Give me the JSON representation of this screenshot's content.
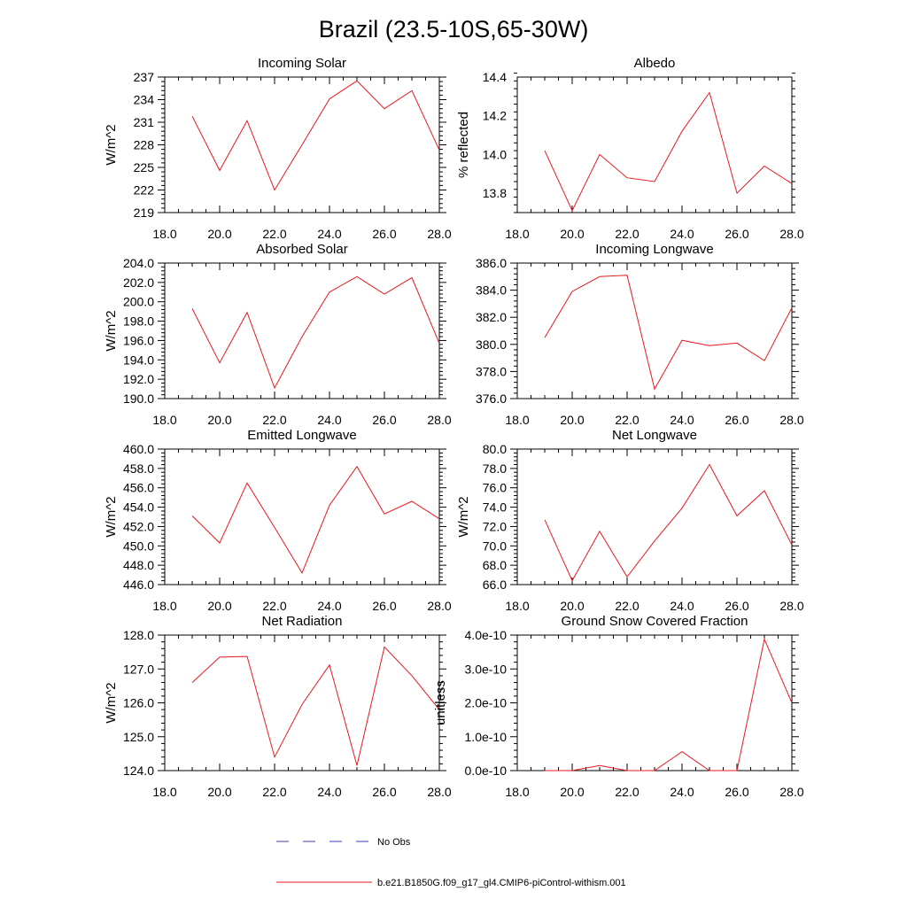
{
  "figure": {
    "title": "Brazil (23.5-10S,65-30W)"
  },
  "legend": {
    "entries": [
      {
        "label": "No Obs",
        "color": "#3b3bb8",
        "style": "dashed"
      },
      {
        "label": "b.e21.B1850G.f09_g17_gl4.CMIP6-piControl-withism.001",
        "color": "#e8191f",
        "style": "solid"
      }
    ]
  },
  "chart_data": [
    {
      "type": "line",
      "title": "Incoming Solar",
      "ylabel": "W/m^2",
      "xlim": [
        18,
        28
      ],
      "ylim": [
        219,
        237
      ],
      "xticks": [
        "18.0",
        "20.0",
        "22.0",
        "24.0",
        "26.0",
        "28.0"
      ],
      "yticks": [
        "219",
        "222",
        "225",
        "228",
        "231",
        "234",
        "237"
      ],
      "series": [
        {
          "color": "#e8191f",
          "x": [
            19,
            20,
            21,
            22,
            23,
            24,
            25,
            26,
            27,
            28
          ],
          "y": [
            231.8,
            224.6,
            231.2,
            222.0,
            228.0,
            234.1,
            236.5,
            232.8,
            235.2,
            227.3
          ]
        }
      ]
    },
    {
      "type": "line",
      "title": "Albedo",
      "ylabel": "% reflected",
      "xlim": [
        18,
        28
      ],
      "ylim": [
        13.7,
        14.4
      ],
      "xticks": [
        "18.0",
        "20.0",
        "22.0",
        "24.0",
        "26.0",
        "28.0"
      ],
      "yticks": [
        "13.8",
        "14.0",
        "14.2",
        "14.4"
      ],
      "series": [
        {
          "color": "#e8191f",
          "x": [
            19,
            20,
            21,
            22,
            23,
            24,
            25,
            26,
            27,
            28
          ],
          "y": [
            14.02,
            13.71,
            14.0,
            13.88,
            13.86,
            14.12,
            14.32,
            13.8,
            13.94,
            13.85
          ]
        }
      ]
    },
    {
      "type": "line",
      "title": "Absorbed Solar",
      "ylabel": "W/m^2",
      "xlim": [
        18,
        28
      ],
      "ylim": [
        190,
        204
      ],
      "xticks": [
        "18.0",
        "20.0",
        "22.0",
        "24.0",
        "26.0",
        "28.0"
      ],
      "yticks": [
        "190.0",
        "192.0",
        "194.0",
        "196.0",
        "198.0",
        "200.0",
        "202.0",
        "204.0"
      ],
      "series": [
        {
          "color": "#e8191f",
          "x": [
            19,
            20,
            21,
            22,
            23,
            24,
            25,
            26,
            27,
            28
          ],
          "y": [
            199.3,
            193.7,
            198.9,
            191.1,
            196.4,
            201.0,
            202.6,
            200.8,
            202.5,
            195.7
          ]
        }
      ]
    },
    {
      "type": "line",
      "title": "Incoming Longwave",
      "ylabel": "",
      "xlim": [
        18,
        28
      ],
      "ylim": [
        376,
        386
      ],
      "xticks": [
        "18.0",
        "20.0",
        "22.0",
        "24.0",
        "26.0",
        "28.0"
      ],
      "yticks": [
        "376.0",
        "378.0",
        "380.0",
        "382.0",
        "384.0",
        "386.0"
      ],
      "series": [
        {
          "color": "#e8191f",
          "x": [
            19,
            20,
            21,
            22,
            23,
            24,
            25,
            26,
            27,
            28
          ],
          "y": [
            380.5,
            383.9,
            385.0,
            385.1,
            376.7,
            380.3,
            379.9,
            380.1,
            378.8,
            382.7
          ]
        }
      ]
    },
    {
      "type": "line",
      "title": "Emitted Longwave",
      "ylabel": "W/m^2",
      "xlim": [
        18,
        28
      ],
      "ylim": [
        446,
        460
      ],
      "xticks": [
        "18.0",
        "20.0",
        "22.0",
        "24.0",
        "26.0",
        "28.0"
      ],
      "yticks": [
        "446.0",
        "448.0",
        "450.0",
        "452.0",
        "454.0",
        "456.0",
        "458.0",
        "460.0"
      ],
      "series": [
        {
          "color": "#e8191f",
          "x": [
            19,
            20,
            21,
            22,
            23,
            24,
            25,
            26,
            27,
            28
          ],
          "y": [
            453.1,
            450.3,
            456.5,
            451.9,
            447.2,
            454.2,
            458.2,
            453.3,
            454.6,
            452.8
          ]
        }
      ]
    },
    {
      "type": "line",
      "title": "Net Longwave",
      "ylabel": "W/m^2",
      "xlim": [
        18,
        28
      ],
      "ylim": [
        66,
        80
      ],
      "xticks": [
        "18.0",
        "20.0",
        "22.0",
        "24.0",
        "26.0",
        "28.0"
      ],
      "yticks": [
        "66.0",
        "68.0",
        "70.0",
        "72.0",
        "74.0",
        "76.0",
        "78.0",
        "80.0"
      ],
      "series": [
        {
          "color": "#e8191f",
          "x": [
            19,
            20,
            21,
            22,
            23,
            24,
            25,
            26,
            27,
            28
          ],
          "y": [
            72.7,
            66.4,
            71.5,
            66.8,
            70.5,
            73.9,
            78.4,
            73.1,
            75.7,
            70.1
          ]
        }
      ]
    },
    {
      "type": "line",
      "title": "Net Radiation",
      "ylabel": "W/m^2",
      "xlim": [
        18,
        28
      ],
      "ylim": [
        124,
        128
      ],
      "xticks": [
        "18.0",
        "20.0",
        "22.0",
        "24.0",
        "26.0",
        "28.0"
      ],
      "yticks": [
        "124.0",
        "125.0",
        "126.0",
        "127.0",
        "128.0"
      ],
      "series": [
        {
          "color": "#e8191f",
          "x": [
            19,
            20,
            21,
            22,
            23,
            24,
            25,
            26,
            27,
            28
          ],
          "y": [
            126.6,
            127.35,
            127.37,
            124.4,
            125.95,
            127.12,
            124.15,
            127.65,
            126.8,
            125.8
          ]
        }
      ]
    },
    {
      "type": "line",
      "title": "Ground Snow Covered Fraction",
      "ylabel": "unitless",
      "xlim": [
        18,
        28
      ],
      "ylim": [
        0,
        4e-10
      ],
      "xticks": [
        "18.0",
        "20.0",
        "22.0",
        "24.0",
        "26.0",
        "28.0"
      ],
      "yticks": [
        "0.0e-10",
        "1.0e-10",
        "2.0e-10",
        "3.0e-10",
        "4.0e-10"
      ],
      "series": [
        {
          "color": "#e8191f",
          "x": [
            19,
            20,
            21,
            22,
            23,
            24,
            25,
            26,
            27,
            28
          ],
          "y": [
            0,
            0,
            1.5e-11,
            0,
            0,
            5.6e-11,
            0,
            0,
            3.88e-10,
            2e-10
          ]
        }
      ]
    }
  ]
}
